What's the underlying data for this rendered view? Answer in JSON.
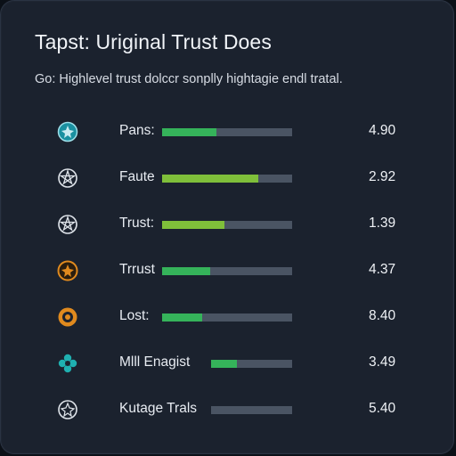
{
  "header": {
    "title": "Tapst: Uriginal Trust Does",
    "subtitle": "Go: Highlevel trust dolccr sonplly hightagie endl tratal."
  },
  "colors": {
    "green": "#35b35a",
    "lime": "#7fbf3a",
    "track": "#4a5463",
    "icon_teal": "#1fb0b0",
    "icon_orange": "#e08a1e",
    "icon_white": "#dfe4ea"
  },
  "rows": [
    {
      "icon": "teal-badge-icon",
      "label": "Pans:",
      "value": "4.90",
      "fill_fraction": 0.42,
      "fill_color": "#35b35a"
    },
    {
      "icon": "pentagram-badge-icon",
      "label": "Faute",
      "value": "2.92",
      "fill_fraction": 0.74,
      "fill_color": "#7fbf3a"
    },
    {
      "icon": "pentagram-badge-icon",
      "label": "Trust:",
      "value": "1.39",
      "fill_fraction": 0.48,
      "fill_color": "#7fbf3a"
    },
    {
      "icon": "orange-badge-icon",
      "label": "Trrust",
      "value": "4.37",
      "fill_fraction": 0.37,
      "fill_color": "#35b35a"
    },
    {
      "icon": "orange-ring-icon",
      "label": "Lost:",
      "value": "8.40",
      "fill_fraction": 0.31,
      "fill_color": "#35b35a"
    },
    {
      "icon": "teal-flower-icon",
      "label": "Mlll Enagist",
      "value": "3.49",
      "fill_fraction": 0.32,
      "fill_color": "#35b35a"
    },
    {
      "icon": "white-badge-icon",
      "label": "Kutage Trals",
      "value": "5.40",
      "fill_fraction": 0.0,
      "fill_color": "#35b35a"
    }
  ]
}
